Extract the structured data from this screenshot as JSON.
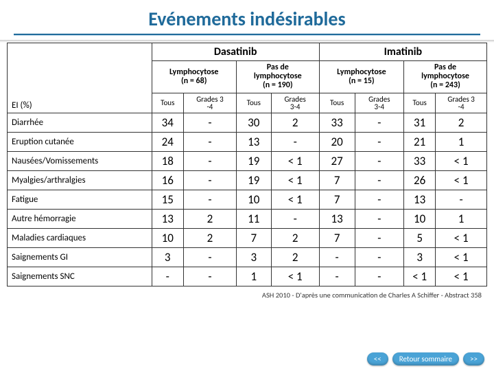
{
  "title": "Evénements indésirables",
  "drugs": {
    "a": "Dasatinib",
    "b": "Imatinib"
  },
  "subgroups": {
    "a1": "Lymphocytose\n(n = 68)",
    "a2": "Pas de\nlymphocytose\n(n = 190)",
    "b1": "Lymphocytose\n(n = 15)",
    "b2": "Pas de\nlymphocytose\n(n = 243)"
  },
  "subsub": {
    "a1t": "Tous",
    "a1g": "Grades 3\n-4",
    "a2t": "Tous",
    "a2g": "Grades\n3-4",
    "b1t": "Tous",
    "b1g": "Grades\n3-4",
    "b2t": "Tous",
    "b2g": "Grades 3\n-4"
  },
  "row_header": "EI (%)",
  "rows": [
    {
      "label": "Diarrhée",
      "v": [
        "34",
        "-",
        "30",
        "2",
        "33",
        "-",
        "31",
        "2"
      ]
    },
    {
      "label": "Eruption cutanée",
      "v": [
        "24",
        "-",
        "13",
        "-",
        "20",
        "-",
        "21",
        "1"
      ]
    },
    {
      "label": "Nausées/Vomissements",
      "v": [
        "18",
        "-",
        "19",
        "< 1",
        "27",
        "-",
        "33",
        "< 1"
      ]
    },
    {
      "label": "Myalgies/arthralgies",
      "v": [
        "16",
        "-",
        "19",
        "< 1",
        "7",
        "-",
        "26",
        "< 1"
      ]
    },
    {
      "label": "Fatigue",
      "v": [
        "15",
        "-",
        "10",
        "< 1",
        "7",
        "-",
        "13",
        "-"
      ]
    },
    {
      "label": "Autre hémorragie",
      "v": [
        "13",
        "2",
        "11",
        "-",
        "13",
        "-",
        "10",
        "1"
      ]
    },
    {
      "label": "Maladies cardiaques",
      "v": [
        "10",
        "2",
        "7",
        "2",
        "7",
        "-",
        "5",
        "< 1"
      ]
    },
    {
      "label": "Saignements GI",
      "v": [
        "3",
        "-",
        "3",
        "2",
        "-",
        "-",
        "3",
        "< 1"
      ]
    },
    {
      "label": "Saignements SNC",
      "v": [
        "-",
        "-",
        "1",
        "< 1",
        "-",
        "-",
        "< 1",
        "< 1"
      ]
    }
  ],
  "footnote": "ASH 2010 - D'après une communication de Charles A Schiffer - Abstract 358",
  "nav": {
    "prev": "<<",
    "home": "Retour sommaire",
    "next": ">>"
  },
  "colors": {
    "title": "#1f6a9a",
    "pill": "#4aa3d6",
    "border": "#333"
  }
}
